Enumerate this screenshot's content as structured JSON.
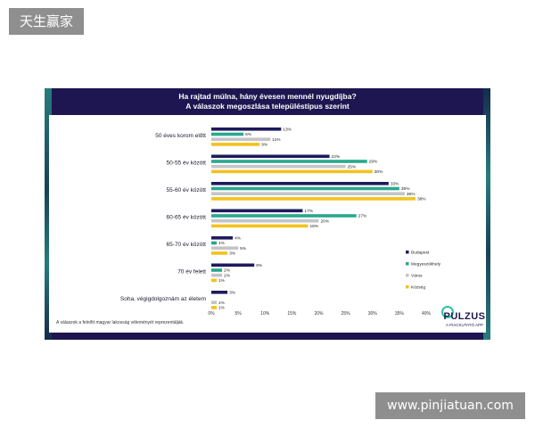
{
  "watermark_top": "天生赢家",
  "watermark_bottom": "www.pinjiatuan.com",
  "footnote": "A válaszok a felnőtt magyar lakosság véleményét reprezentálják.",
  "logo": {
    "name": "PULZUS",
    "tagline": "A PIACKUTATÓ APP"
  },
  "colors": {
    "Budapest": "#1e1a5e",
    "Megyeszékhely": "#28a88c",
    "Város": "#c4c4c8",
    "Község": "#f2c21e",
    "frame": "#1e1650"
  },
  "chart_data": {
    "type": "bar",
    "orientation": "horizontal",
    "title": "Ha rajtad múlna, hány évesen mennél nyugdíjba?",
    "subtitle": "A válaszok megoszlása településtípus szerint",
    "categories": [
      "50 éves korom előtt",
      "50-55 év között",
      "55-60 év között",
      "60-65 év között",
      "65-70 év között",
      "70 év felett",
      "Soha, végigdolgoznám az életem"
    ],
    "series": [
      {
        "name": "Budapest",
        "values": [
          13,
          22,
          33,
          17,
          4,
          8,
          3
        ]
      },
      {
        "name": "Megyeszékhely",
        "values": [
          6,
          29,
          35,
          27,
          1,
          2,
          null
        ]
      },
      {
        "name": "Város",
        "values": [
          11,
          25,
          36,
          20,
          5,
          2,
          1
        ]
      },
      {
        "name": "Község",
        "values": [
          9,
          30,
          38,
          18,
          3,
          1,
          1
        ]
      }
    ],
    "value_suffix": "%",
    "xlim": [
      0,
      40
    ],
    "xticks": [
      0,
      5,
      10,
      15,
      20,
      25,
      30,
      35,
      40
    ],
    "legend_position": "right",
    "grid": false
  }
}
